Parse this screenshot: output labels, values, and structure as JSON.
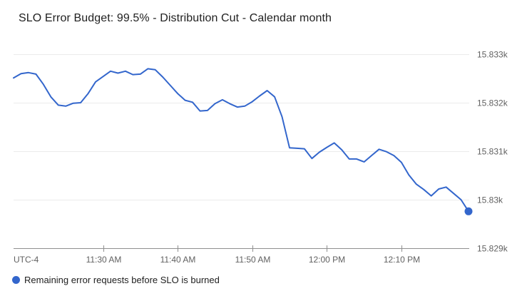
{
  "colors": {
    "line": "#3366cc",
    "end_dot": "#3366cc",
    "grid": "#ebebeb",
    "axis": "#8f8f8f",
    "tick_text": "#616161",
    "title_text": "#212121",
    "legend_text": "#212121"
  },
  "chart_data": {
    "type": "line",
    "title": "SLO Error Budget: 99.5% - Distribution Cut - Calendar month",
    "grid": true,
    "legend_position": "bottom",
    "x_axis": {
      "timezone_label": "UTC-4",
      "ticks": [
        "11:30 AM",
        "11:40 AM",
        "11:50 AM",
        "12:00 PM",
        "12:10 PM"
      ]
    },
    "y_axis": {
      "side": "right",
      "range": [
        15829,
        15833
      ],
      "ticks": [
        {
          "label": "15.833k",
          "value": 15833
        },
        {
          "label": "15.832k",
          "value": 15832
        },
        {
          "label": "15.831k",
          "value": 15831
        },
        {
          "label": "15.83k",
          "value": 15830
        },
        {
          "label": "15.829k",
          "value": 15829
        }
      ]
    },
    "series": [
      {
        "name": "Remaining error requests before SLO is burned",
        "color": "#3366cc",
        "end_dot": true,
        "x": [
          "11:18 AM",
          "11:19 AM",
          "11:20 AM",
          "11:21 AM",
          "11:22 AM",
          "11:23 AM",
          "11:24 AM",
          "11:25 AM",
          "11:26 AM",
          "11:27 AM",
          "11:28 AM",
          "11:29 AM",
          "11:30 AM",
          "11:31 AM",
          "11:32 AM",
          "11:33 AM",
          "11:34 AM",
          "11:35 AM",
          "11:36 AM",
          "11:37 AM",
          "11:38 AM",
          "11:39 AM",
          "11:40 AM",
          "11:41 AM",
          "11:42 AM",
          "11:43 AM",
          "11:44 AM",
          "11:45 AM",
          "11:46 AM",
          "11:47 AM",
          "11:48 AM",
          "11:49 AM",
          "11:50 AM",
          "11:51 AM",
          "11:52 AM",
          "11:53 AM",
          "11:54 AM",
          "11:55 AM",
          "11:56 AM",
          "11:57 AM",
          "11:58 AM",
          "11:59 AM",
          "12:00 PM",
          "12:01 PM",
          "12:02 PM",
          "12:03 PM",
          "12:04 PM",
          "12:05 PM",
          "12:06 PM",
          "12:07 PM",
          "12:08 PM",
          "12:09 PM",
          "12:10 PM",
          "12:11 PM",
          "12:12 PM",
          "12:13 PM",
          "12:14 PM",
          "12:15 PM",
          "12:16 PM",
          "12:17 PM",
          "12:18 PM",
          "12:19 PM"
        ],
        "values": [
          15832.51,
          15832.6,
          15832.62,
          15832.59,
          15832.38,
          15832.12,
          15831.95,
          15831.93,
          15831.99,
          15832.0,
          15832.19,
          15832.43,
          15832.54,
          15832.65,
          15832.61,
          15832.65,
          15832.58,
          15832.59,
          15832.7,
          15832.68,
          15832.53,
          15832.36,
          15832.19,
          15832.05,
          15832.01,
          15831.83,
          15831.84,
          15831.98,
          15832.06,
          15831.98,
          15831.91,
          15831.93,
          15832.02,
          15832.14,
          15832.25,
          15832.12,
          15831.71,
          15831.07,
          15831.06,
          15831.05,
          15830.85,
          15830.98,
          15831.08,
          15831.17,
          15831.03,
          15830.84,
          15830.84,
          15830.78,
          15830.91,
          15831.04,
          15830.99,
          15830.91,
          15830.77,
          15830.51,
          15830.32,
          15830.21,
          15830.08,
          15830.22,
          15830.26,
          15830.13,
          15830.0,
          15829.76
        ]
      }
    ]
  }
}
